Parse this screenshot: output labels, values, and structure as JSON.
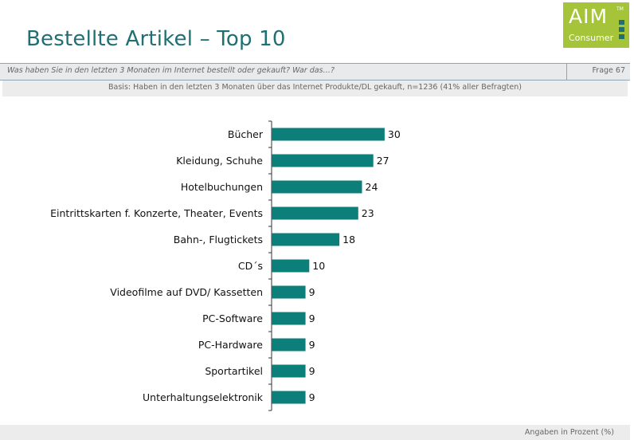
{
  "header": {
    "title": "Bestellte Artikel – Top 10",
    "logo_main": "AIM",
    "logo_tm": "TM",
    "logo_sub": "Consumer"
  },
  "question": {
    "text": "Was haben Sie in den letzten 3 Monaten im Internet bestellt oder gekauft? War das…?",
    "number": "Frage 67"
  },
  "basis": "Basis: Haben in den letzten 3 Monaten über das Internet  Produkte/DL gekauft, n=1236 (41% aller Befragten)",
  "footnote": "Angaben in Prozent (%)",
  "colors": {
    "bar": "#0d7f7a",
    "title": "#1f6f73",
    "logo": "#a5c43a"
  },
  "chart_data": {
    "type": "bar",
    "orientation": "horizontal",
    "categories": [
      "Bücher",
      "Kleidung, Schuhe",
      "Hotelbuchungen",
      "Eintrittskarten f. Konzerte, Theater, Events",
      "Bahn-, Flugtickets",
      "CD´s",
      "Videofilme auf DVD/ Kassetten",
      "PC-Software",
      "PC-Hardware",
      "Sportartikel",
      "Unterhaltungselektronik"
    ],
    "values": [
      30,
      27,
      24,
      23,
      18,
      10,
      9,
      9,
      9,
      9,
      9
    ],
    "data_labels": [
      "30",
      "27",
      "24",
      "23",
      "18",
      "10",
      "9",
      "9",
      "9",
      "9",
      "9"
    ],
    "unit": "%",
    "grid": false,
    "legend": "none"
  }
}
